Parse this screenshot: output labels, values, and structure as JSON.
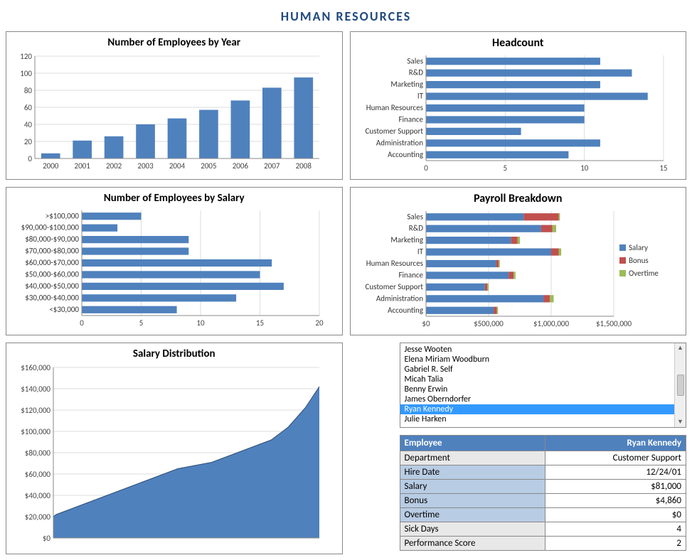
{
  "title": "HUMAN RESOURCES",
  "colors": {
    "primary": "#4f81bd",
    "accent_red": "#c0504d",
    "accent_green": "#9bbb59",
    "grid": "#dddddd",
    "axis": "#888888",
    "title": "#1f497d"
  },
  "employees_by_year": {
    "title": "Number of Employees by Year",
    "type": "bar",
    "categories": [
      "2000",
      "2001",
      "2002",
      "2003",
      "2004",
      "2005",
      "2006",
      "2007",
      "2008"
    ],
    "values": [
      6,
      21,
      26,
      40,
      47,
      57,
      68,
      83,
      95
    ],
    "ylim": [
      0,
      120
    ],
    "ytick_step": 20,
    "bar_color": "#4f81bd",
    "title_fontsize": 15
  },
  "headcount": {
    "title": "Headcount",
    "type": "hbar",
    "categories": [
      "Sales",
      "R&D",
      "Marketing",
      "IT",
      "Human Resources",
      "Finance",
      "Customer Support",
      "Administration",
      "Accounting"
    ],
    "values": [
      11,
      13,
      11,
      14,
      10,
      10,
      6,
      11,
      9
    ],
    "xlim": [
      0,
      15
    ],
    "xtick_step": 5,
    "bar_color": "#4f81bd",
    "title_fontsize": 16
  },
  "employees_by_salary": {
    "title": "Number of Employees by Salary",
    "type": "hbar",
    "categories": [
      ">$100,000",
      "$90,000-$100,000",
      "$80,000-$90,000",
      "$70,000-$80,000",
      "$60,000-$70,000",
      "$50,000-$60,000",
      "$40,000-$50,000",
      "$30,000-$40,000",
      "<$30,000"
    ],
    "values": [
      5,
      3,
      9,
      9,
      16,
      15,
      17,
      13,
      8
    ],
    "xlim": [
      0,
      20
    ],
    "xtick_step": 5,
    "bar_color": "#4f81bd",
    "title_fontsize": 15
  },
  "payroll_breakdown": {
    "title": "Payroll Breakdown",
    "type": "stacked_hbar",
    "categories": [
      "Sales",
      "R&D",
      "Marketing",
      "IT",
      "Human Resources",
      "Finance",
      "Customer Support",
      "Administration",
      "Accounting"
    ],
    "series": [
      {
        "name": "Salary",
        "color": "#4f81bd",
        "values": [
          780000,
          920000,
          680000,
          1000000,
          560000,
          660000,
          470000,
          940000,
          540000
        ]
      },
      {
        "name": "Bonus",
        "color": "#c0504d",
        "values": [
          280000,
          90000,
          50000,
          60000,
          20000,
          40000,
          20000,
          50000,
          25000
        ]
      },
      {
        "name": "Overtime",
        "color": "#9bbb59",
        "values": [
          10000,
          30000,
          20000,
          20000,
          10000,
          15000,
          10000,
          30000,
          10000
        ]
      }
    ],
    "xlim": [
      0,
      1500000
    ],
    "xticks": [
      0,
      500000,
      1000000,
      1500000
    ],
    "xtick_labels": [
      "$0",
      "$500,000",
      "$1,000,000",
      "$1,500,000"
    ],
    "legend": [
      "Salary",
      "Bonus",
      "Overtime"
    ],
    "title_fontsize": 16
  },
  "salary_distribution": {
    "title": "Salary Distribution",
    "type": "area",
    "ylim": [
      0,
      160000
    ],
    "ytick_step": 20000,
    "ytick_labels": [
      "$0",
      "$20,000",
      "$40,000",
      "$60,000",
      "$80,000",
      "$100,000",
      "$120,000",
      "$140,000",
      "$160,000"
    ],
    "n_points": 95,
    "values_sample": [
      20000,
      22000,
      23000,
      24000,
      25000,
      26000,
      27000,
      28000,
      29000,
      30000,
      31000,
      32000,
      33000,
      34000,
      35000,
      36000,
      37000,
      38000,
      39000,
      40000,
      41000,
      42000,
      43000,
      44000,
      45000,
      46000,
      47000,
      48000,
      49000,
      50000,
      51000,
      52000,
      53000,
      54000,
      55000,
      56000,
      57000,
      58000,
      59000,
      60000,
      61000,
      62000,
      63000,
      64000,
      65000,
      65500,
      66000,
      66500,
      67000,
      67500,
      68000,
      68500,
      69000,
      69500,
      70000,
      70500,
      71000,
      72000,
      73000,
      74000,
      75000,
      76000,
      77000,
      78000,
      79000,
      80000,
      81000,
      82000,
      83000,
      84000,
      85000,
      86000,
      87000,
      88000,
      89000,
      90000,
      91000,
      92000,
      94000,
      96000,
      98000,
      100000,
      102000,
      104000,
      107000,
      110000,
      113000,
      116000,
      119000,
      122000,
      126000,
      130000,
      134000,
      138000,
      142000
    ],
    "fill_color": "#4f81bd",
    "title_fontsize": 15
  },
  "employee_list": {
    "items": [
      "Jesse Wooten",
      "Elena Miriam Woodburn",
      "Gabriel R. Self",
      "Micah Talia",
      "Benny Erwin",
      "James Oberndorfer",
      "Ryan Kennedy",
      "Julie Harken"
    ],
    "selected_index": 6
  },
  "employee_detail": {
    "header_key": "Employee",
    "header_value": "Ryan Kennedy",
    "rows": [
      {
        "key": "Department",
        "value": "Customer Support"
      },
      {
        "key": "Hire Date",
        "value": "12/24/01"
      },
      {
        "key": "Salary",
        "value": "$81,000"
      },
      {
        "key": "Bonus",
        "value": "$4,860"
      },
      {
        "key": "Overtime",
        "value": "$0"
      },
      {
        "key": "Sick Days",
        "value": "4"
      },
      {
        "key": "Performance Score",
        "value": "2"
      }
    ]
  }
}
